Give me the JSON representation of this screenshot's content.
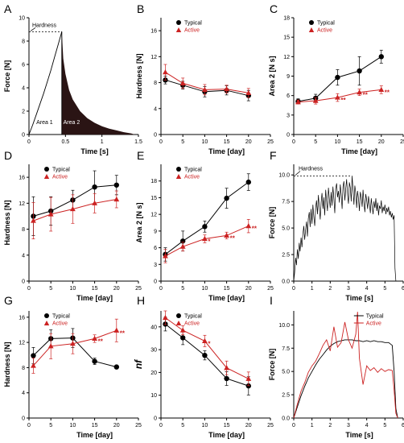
{
  "colors": {
    "typical": "#000000",
    "active": "#cc2222",
    "fill_area2": "#2a1414"
  },
  "chart_data": [
    {
      "id": "A",
      "panel_label": "A",
      "type": "area",
      "xlabel": "Time [s]",
      "ylabel": "Force [N]",
      "xlim": [
        0,
        1.5
      ],
      "ylim": [
        0,
        10
      ],
      "xticks": [
        "0",
        "0.5",
        "1",
        "1.5"
      ],
      "yticks": [
        "0",
        "2",
        "4",
        "6",
        "8",
        "10"
      ],
      "peak_label": "Hardness",
      "area_labels": [
        "Area 1",
        "Area 2"
      ],
      "peak": {
        "x": 0.45,
        "y": 8.8
      },
      "rise_curve": {
        "x": [
          0,
          0.05,
          0.1,
          0.15,
          0.2,
          0.25,
          0.3,
          0.35,
          0.4,
          0.45
        ],
        "y": [
          0,
          0.8,
          1.7,
          2.6,
          3.5,
          4.5,
          5.5,
          6.6,
          7.7,
          8.8
        ]
      },
      "decay_curve": {
        "x": [
          0.45,
          0.47,
          0.5,
          0.55,
          0.6,
          0.7,
          0.8,
          0.9,
          1.0,
          1.1,
          1.2,
          1.3,
          1.4,
          1.45
        ],
        "y": [
          8.8,
          6.5,
          5.2,
          3.8,
          3.0,
          2.0,
          1.4,
          1.0,
          0.7,
          0.5,
          0.35,
          0.2,
          0.1,
          0
        ]
      }
    },
    {
      "id": "B",
      "panel_label": "B",
      "type": "line",
      "xlabel": "Time [day]",
      "ylabel": "Hardness [N]",
      "xlim": [
        0,
        25
      ],
      "ylim": [
        0,
        18
      ],
      "xticks": [
        "0",
        "5",
        "10",
        "15",
        "20",
        "25"
      ],
      "yticks": [
        "0",
        "4",
        "8",
        "12",
        "16"
      ],
      "x": [
        1,
        5,
        10,
        15,
        20
      ],
      "series": [
        {
          "name": "Typical",
          "values": [
            8.4,
            7.6,
            6.6,
            6.8,
            6.0
          ],
          "err": [
            0.6,
            0.6,
            0.8,
            0.7,
            0.8
          ]
        },
        {
          "name": "Active",
          "values": [
            9.6,
            7.9,
            6.9,
            7.0,
            6.4
          ],
          "err": [
            1.2,
            0.8,
            0.8,
            0.6,
            0.7
          ]
        }
      ],
      "annotations": []
    },
    {
      "id": "C",
      "panel_label": "C",
      "type": "line",
      "xlabel": "Time [day]",
      "ylabel": "Area 2 [N s]",
      "xlim": [
        0,
        25
      ],
      "ylim": [
        0,
        18
      ],
      "xticks": [
        "0",
        "5",
        "10",
        "15",
        "20",
        "25"
      ],
      "yticks": [
        "0",
        "3",
        "6",
        "9",
        "12",
        "15",
        "18"
      ],
      "x": [
        1,
        5,
        10,
        15,
        20
      ],
      "series": [
        {
          "name": "Typical",
          "values": [
            5.1,
            5.6,
            8.8,
            9.8,
            12.0
          ],
          "err": [
            0.4,
            0.6,
            1.2,
            2.2,
            1.0
          ]
        },
        {
          "name": "Active",
          "values": [
            5.0,
            5.2,
            5.7,
            6.5,
            6.9
          ],
          "err": [
            0.3,
            0.5,
            0.6,
            0.5,
            0.6
          ]
        }
      ],
      "annotations": [
        {
          "x": 10,
          "y": 5.7,
          "text": "**"
        },
        {
          "x": 15,
          "y": 6.5,
          "text": "**"
        },
        {
          "x": 20,
          "y": 6.9,
          "text": "**"
        }
      ]
    },
    {
      "id": "D",
      "panel_label": "D",
      "type": "line",
      "xlabel": "Time [day]",
      "ylabel": "Hardness [N]",
      "xlim": [
        0,
        25
      ],
      "ylim": [
        0,
        18
      ],
      "xticks": [
        "0",
        "5",
        "10",
        "15",
        "20",
        "25"
      ],
      "yticks": [
        "0",
        "4",
        "8",
        "12",
        "16"
      ],
      "x": [
        1,
        5,
        10,
        15,
        20
      ],
      "series": [
        {
          "name": "Typical",
          "values": [
            10.0,
            10.8,
            12.5,
            14.5,
            14.8
          ],
          "err": [
            3.0,
            2.2,
            1.5,
            2.5,
            1.5
          ]
        },
        {
          "name": "Active",
          "values": [
            9.3,
            10.3,
            11.1,
            12.0,
            12.6
          ],
          "err": [
            2.8,
            2.6,
            2.2,
            1.5,
            1.3
          ]
        }
      ],
      "annotations": []
    },
    {
      "id": "E",
      "panel_label": "E",
      "type": "line",
      "xlabel": "Time [day]",
      "ylabel": "Area 2 [N s]",
      "xlim": [
        0,
        25
      ],
      "ylim": [
        0,
        21
      ],
      "xticks": [
        "0",
        "5",
        "10",
        "15",
        "20",
        "25"
      ],
      "yticks": [
        "0",
        "3",
        "6",
        "9",
        "12",
        "15",
        "18"
      ],
      "x": [
        1,
        5,
        10,
        15,
        20
      ],
      "series": [
        {
          "name": "Typical",
          "values": [
            4.8,
            7.2,
            9.8,
            14.9,
            17.8
          ],
          "err": [
            1.2,
            1.8,
            1.0,
            1.8,
            1.5
          ]
        },
        {
          "name": "Active",
          "values": [
            4.5,
            6.2,
            7.6,
            8.2,
            9.9
          ],
          "err": [
            1.2,
            0.8,
            0.7,
            0.6,
            1.2
          ]
        }
      ],
      "annotations": [
        {
          "x": 10,
          "y": 7.6,
          "text": "*"
        },
        {
          "x": 15,
          "y": 8.2,
          "text": "**"
        },
        {
          "x": 20,
          "y": 9.9,
          "text": "**"
        }
      ]
    },
    {
      "id": "F",
      "panel_label": "F",
      "type": "line",
      "xlabel": "Time [s]",
      "ylabel": "Force [N]",
      "xlim": [
        0,
        6
      ],
      "ylim": [
        0,
        11
      ],
      "xticks": [
        "0",
        "1",
        "2",
        "3",
        "4",
        "5",
        "6"
      ],
      "yticks": [
        "0.0",
        "2.5",
        "5.0",
        "7.5",
        "10.0"
      ],
      "peak_label": "Hardness",
      "peak": {
        "x": 3.2,
        "y": 9.9
      },
      "x": [
        0,
        0.05,
        0.1,
        0.15,
        0.2,
        0.25,
        0.3,
        0.35,
        0.4,
        0.45,
        0.5,
        0.55,
        0.6,
        0.65,
        0.7,
        0.75,
        0.8,
        0.85,
        0.9,
        0.95,
        1.0,
        1.05,
        1.1,
        1.15,
        1.2,
        1.25,
        1.3,
        1.35,
        1.4,
        1.45,
        1.5,
        1.55,
        1.6,
        1.65,
        1.7,
        1.75,
        1.8,
        1.85,
        1.9,
        1.95,
        2.0,
        2.05,
        2.1,
        2.15,
        2.2,
        2.25,
        2.3,
        2.35,
        2.4,
        2.45,
        2.5,
        2.55,
        2.6,
        2.65,
        2.7,
        2.75,
        2.8,
        2.85,
        2.9,
        2.95,
        3.0,
        3.05,
        3.1,
        3.15,
        3.2,
        3.25,
        3.3,
        3.35,
        3.4,
        3.45,
        3.5,
        3.55,
        3.6,
        3.65,
        3.7,
        3.75,
        3.8,
        3.85,
        3.9,
        3.95,
        4.0,
        4.05,
        4.1,
        4.15,
        4.2,
        4.25,
        4.3,
        4.35,
        4.4,
        4.45,
        4.5,
        4.55,
        4.6,
        4.65,
        4.7,
        4.75,
        4.8,
        4.85,
        4.9,
        4.95,
        5.0,
        5.05,
        5.1,
        5.15,
        5.2,
        5.25,
        5.3,
        5.35,
        5.4,
        5.45,
        5.5,
        5.55,
        5.6
      ],
      "series": [
        {
          "name": "",
          "values": [
            0,
            0.8,
            2.2,
            1.5,
            3.0,
            2.1,
            3.6,
            2.8,
            4.1,
            3.2,
            4.4,
            5.2,
            3.9,
            4.8,
            5.6,
            4.2,
            5.9,
            6.5,
            5.1,
            6.8,
            5.4,
            7.2,
            6.1,
            5.2,
            6.9,
            7.6,
            6.3,
            8.1,
            7.0,
            5.8,
            7.4,
            8.3,
            6.8,
            7.9,
            6.2,
            8.6,
            7.5,
            6.6,
            8.8,
            7.8,
            6.9,
            8.4,
            7.1,
            8.9,
            7.7,
            6.4,
            8.7,
            9.2,
            7.9,
            8.5,
            7.4,
            9.1,
            8.2,
            6.8,
            8.9,
            9.4,
            7.6,
            8.7,
            9.6,
            8.1,
            7.3,
            9.3,
            8.8,
            7.5,
            9.9,
            8.6,
            7.2,
            9.0,
            8.3,
            6.9,
            8.5,
            7.7,
            6.6,
            8.4,
            7.9,
            7.0,
            8.6,
            7.3,
            6.5,
            8.2,
            7.6,
            6.8,
            8.0,
            7.2,
            6.4,
            7.8,
            7.0,
            6.3,
            7.5,
            6.9,
            7.8,
            6.6,
            7.4,
            6.2,
            7.1,
            6.8,
            7.6,
            6.4,
            7.0,
            6.6,
            7.2,
            6.3,
            6.9,
            6.5,
            7.0,
            6.2,
            6.6,
            6.0,
            6.4,
            5.8,
            6.2,
            1.2,
            0
          ]
        }
      ]
    },
    {
      "id": "G",
      "panel_label": "G",
      "type": "line",
      "xlabel": "Time [day]",
      "ylabel": "Hardness [N]",
      "xlim": [
        0,
        25
      ],
      "ylim": [
        0,
        17
      ],
      "xticks": [
        "0",
        "5",
        "10",
        "15",
        "20",
        "25"
      ],
      "yticks": [
        "0",
        "4",
        "8",
        "12",
        "16"
      ],
      "x": [
        1,
        5,
        10,
        15,
        20
      ],
      "series": [
        {
          "name": "Typical",
          "values": [
            9.9,
            12.6,
            12.7,
            9.0,
            8.1
          ],
          "err": [
            1.3,
            1.4,
            1.5,
            0.5,
            0.3
          ]
        },
        {
          "name": "Active",
          "values": [
            8.3,
            11.4,
            11.8,
            12.6,
            13.9
          ],
          "err": [
            1.2,
            2.0,
            1.6,
            0.6,
            1.8
          ]
        }
      ],
      "annotations": [
        {
          "x": 15,
          "y": 12.6,
          "text": "**"
        },
        {
          "x": 20,
          "y": 13.9,
          "text": "**"
        }
      ]
    },
    {
      "id": "H",
      "panel_label": "H",
      "type": "line",
      "xlabel": "Time [day]",
      "ylabel": "nf",
      "xlim": [
        0,
        25
      ],
      "ylim": [
        0,
        47
      ],
      "xticks": [
        "0",
        "5",
        "10",
        "15",
        "20",
        "25"
      ],
      "yticks": [
        "0",
        "10",
        "20",
        "30",
        "40"
      ],
      "x": [
        1,
        5,
        10,
        15,
        20
      ],
      "series": [
        {
          "name": "Typical",
          "values": [
            41.2,
            35.2,
            27.5,
            17.3,
            14.1
          ],
          "err": [
            3.0,
            3.0,
            2.0,
            3.0,
            4.0
          ]
        },
        {
          "name": "Active",
          "values": [
            44.0,
            38.5,
            33.8,
            22.0,
            17.2
          ],
          "err": [
            3.0,
            2.0,
            2.5,
            3.0,
            3.0
          ]
        }
      ],
      "annotations": [
        {
          "x": 10,
          "y": 33.8,
          "text": "*"
        }
      ]
    },
    {
      "id": "I",
      "panel_label": "I",
      "type": "line",
      "xlabel": "Time [s]",
      "ylabel": "Force [N]",
      "xlim": [
        0,
        6
      ],
      "ylim": [
        0,
        11.5
      ],
      "xticks": [
        "0",
        "1",
        "2",
        "3",
        "4",
        "5",
        "6"
      ],
      "yticks": [
        "0.0",
        "2.5",
        "5.0",
        "7.5",
        "10.0"
      ],
      "x": [
        0,
        0.2,
        0.4,
        0.6,
        0.8,
        1.0,
        1.2,
        1.4,
        1.6,
        1.8,
        2.0,
        2.2,
        2.4,
        2.6,
        2.8,
        3.0,
        3.2,
        3.4,
        3.5,
        3.6,
        3.8,
        4.0,
        4.2,
        4.4,
        4.6,
        4.8,
        5.0,
        5.2,
        5.4,
        5.5,
        5.6,
        5.7
      ],
      "series": [
        {
          "name": "Typical",
          "values": [
            0,
            1.2,
            2.4,
            3.4,
            4.3,
            5.0,
            5.7,
            6.3,
            6.8,
            7.3,
            7.7,
            8.0,
            8.2,
            8.3,
            8.4,
            8.4,
            8.4,
            8.3,
            8.3,
            8.3,
            8.2,
            8.3,
            8.2,
            8.3,
            8.2,
            8.2,
            8.1,
            8.1,
            7.8,
            5.0,
            1.0,
            0
          ]
        },
        {
          "name": "Active",
          "values": [
            0,
            1.5,
            2.9,
            3.8,
            4.9,
            5.6,
            6.1,
            6.9,
            7.8,
            8.4,
            7.2,
            9.8,
            7.6,
            8.1,
            10.3,
            8.4,
            7.5,
            9.0,
            11.4,
            6.4,
            3.6,
            5.6,
            5.1,
            5.4,
            4.9,
            5.3,
            5.0,
            5.2,
            5.1,
            3.0,
            0.5,
            0
          ]
        }
      ]
    }
  ]
}
